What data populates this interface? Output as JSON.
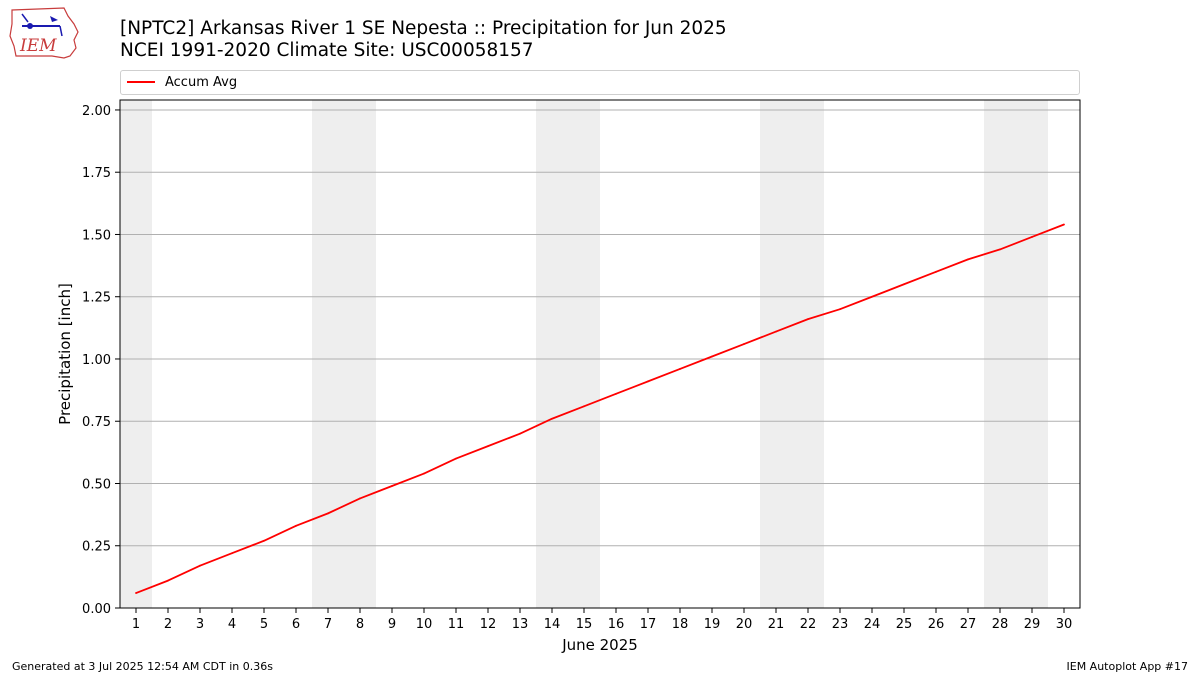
{
  "header": {
    "title_line1": "[NPTC2] Arkansas River 1 SE Nepesta :: Precipitation for Jun 2025",
    "title_line2": "NCEI 1991-2020 Climate Site: USC00058157"
  },
  "logo": {
    "text": "IEM"
  },
  "footer": {
    "generated": "Generated at 3 Jul 2025 12:54 AM CDT in 0.36s",
    "app": "IEM Autoplot App #17"
  },
  "colors": {
    "line": "#ff0000",
    "weekend_band": "#eeeeee",
    "grid": "#b0b0b0"
  },
  "chart_data": {
    "type": "line",
    "title": "[NPTC2] Arkansas River 1 SE Nepesta :: Precipitation for Jun 2025",
    "subtitle": "NCEI 1991-2020 Climate Site: USC00058157",
    "xlabel": "June 2025",
    "ylabel": "Precipitation [inch]",
    "xlim": [
      0.5,
      30.5
    ],
    "ylim": [
      0,
      2.04
    ],
    "x": [
      1,
      2,
      3,
      4,
      5,
      6,
      7,
      8,
      9,
      10,
      11,
      12,
      13,
      14,
      15,
      16,
      17,
      18,
      19,
      20,
      21,
      22,
      23,
      24,
      25,
      26,
      27,
      28,
      29,
      30
    ],
    "x_tick_labels": [
      "1",
      "2",
      "3",
      "4",
      "5",
      "6",
      "7",
      "8",
      "9",
      "10",
      "11",
      "12",
      "13",
      "14",
      "15",
      "16",
      "17",
      "18",
      "19",
      "20",
      "21",
      "22",
      "23",
      "24",
      "25",
      "26",
      "27",
      "28",
      "29",
      "30"
    ],
    "y_ticks": [
      0,
      0.25,
      0.5,
      0.75,
      1.0,
      1.25,
      1.5,
      1.75,
      2.0
    ],
    "y_tick_labels": [
      "0.00",
      "0.25",
      "0.50",
      "0.75",
      "1.00",
      "1.25",
      "1.50",
      "1.75",
      "2.00"
    ],
    "grid": "horizontal",
    "legend_placement": "top",
    "series": [
      {
        "name": "Accum Avg",
        "color": "#ff0000",
        "values": [
          0.06,
          0.11,
          0.17,
          0.22,
          0.27,
          0.33,
          0.38,
          0.44,
          0.49,
          0.54,
          0.6,
          0.65,
          0.7,
          0.76,
          0.81,
          0.86,
          0.91,
          0.96,
          1.01,
          1.06,
          1.11,
          1.16,
          1.2,
          1.25,
          1.3,
          1.35,
          1.4,
          1.44,
          1.49,
          1.54
        ]
      }
    ],
    "weekend_bands": [
      [
        0.5,
        1.5
      ],
      [
        6.5,
        8.5
      ],
      [
        13.5,
        15.5
      ],
      [
        20.5,
        22.5
      ],
      [
        27.5,
        29.5
      ]
    ]
  }
}
